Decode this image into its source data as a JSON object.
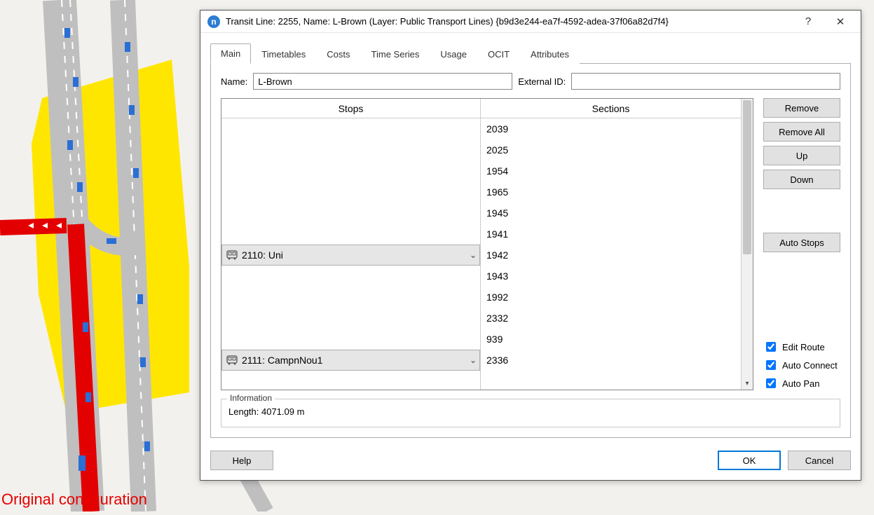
{
  "dialog": {
    "title": "Transit Line: 2255, Name: L-Brown (Layer: Public Transport Lines) {b9d3e244-ea7f-4592-adea-37f06a82d7f4}",
    "help_glyph": "?",
    "close_glyph": "✕"
  },
  "tabs": {
    "main": "Main",
    "timetables": "Timetables",
    "costs": "Costs",
    "timeseries": "Time Series",
    "usage": "Usage",
    "ocit": "OCIT",
    "attributes": "Attributes"
  },
  "fields": {
    "name_label": "Name:",
    "name_value": "L-Brown",
    "extid_label": "External ID:",
    "extid_value": ""
  },
  "grid": {
    "stops_header": "Stops",
    "sections_header": "Sections",
    "rows": [
      {
        "stop": "",
        "section": "2039"
      },
      {
        "stop": "",
        "section": "2025"
      },
      {
        "stop": "",
        "section": "1954"
      },
      {
        "stop": "",
        "section": "1965"
      },
      {
        "stop": "",
        "section": "1945"
      },
      {
        "stop": "",
        "section": "1941"
      },
      {
        "stop": "2110: Uni",
        "section": "1942"
      },
      {
        "stop": "",
        "section": "1943"
      },
      {
        "stop": "",
        "section": "1992"
      },
      {
        "stop": "",
        "section": "2332"
      },
      {
        "stop": "",
        "section": "939"
      },
      {
        "stop": "2111: CampnNou1",
        "section": "2336"
      }
    ]
  },
  "side_buttons": {
    "remove": "Remove",
    "remove_all": "Remove All",
    "up": "Up",
    "down": "Down",
    "auto_stops": "Auto Stops"
  },
  "checks": {
    "edit_route": "Edit Route",
    "auto_connect": "Auto Connect",
    "auto_pan": "Auto Pan"
  },
  "info": {
    "legend": "Information",
    "length": "Length: 4071.09 m"
  },
  "buttons": {
    "help": "Help",
    "ok": "OK",
    "cancel": "Cancel"
  },
  "caption": "Original configuration",
  "colors": {
    "zone_yellow": "#ffe600",
    "road_gray": "#bfbfbf",
    "lane_line": "#ffffff",
    "road_red": "#e30000",
    "car_blue": "#2a6fd6",
    "caption_red": "#e60000"
  }
}
